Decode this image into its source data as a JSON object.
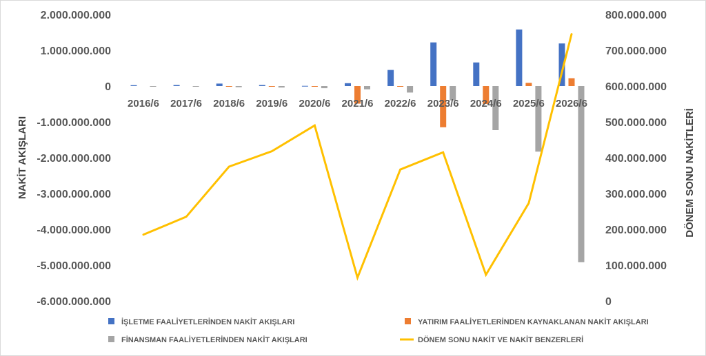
{
  "chart_data": {
    "type": "bar",
    "categories": [
      "2016/6",
      "2017/6",
      "2018/6",
      "2019/6",
      "2020/6",
      "2021/6",
      "2022/6",
      "2023/6",
      "2024/6",
      "2025/6",
      "2026/6"
    ],
    "ylabel": "NAKİT AKIŞLARI",
    "y2label": "DÖNEM SONU NAKİTLERİ",
    "ylim": [
      -6000000000,
      2000000000
    ],
    "y2lim": [
      0,
      800000000
    ],
    "y_ticks": [
      "2.000.000.000",
      "1.000.000.000",
      "0",
      "-1.000.000.000",
      "-2.000.000.000",
      "-3.000.000.000",
      "-4.000.000.000",
      "-5.000.000.000",
      "-6.000.000.000"
    ],
    "y2_ticks": [
      "800.000.000",
      "700.000.000",
      "600.000.000",
      "500.000.000",
      "400.000.000",
      "300.000.000",
      "200.000.000",
      "100.000.000",
      "0"
    ],
    "grid": false,
    "legend_position": "bottom",
    "series": [
      {
        "name": "İŞLETME FAALİYETLERİNDEN NAKİT AKIŞLARI",
        "kind": "bar",
        "axis": "left",
        "color": "#4472C4",
        "values": [
          25000000,
          30000000,
          70000000,
          30000000,
          5000000,
          80000000,
          450000000,
          1220000000,
          660000000,
          1580000000,
          1190000000
        ]
      },
      {
        "name": "YATIRIM FAALİYETLERİNDEN KAYNAKLANAN NAKİT AKIŞLARI",
        "kind": "bar",
        "axis": "left",
        "color": "#ED7D31",
        "values": [
          0,
          0,
          -5000000,
          -5000000,
          -5000000,
          -490000000,
          -10000000,
          -1150000000,
          -500000000,
          90000000,
          220000000
        ]
      },
      {
        "name": "FİNANSMAN FAALİYETLERİNDEN NAKİT AKIŞLARI",
        "kind": "bar",
        "axis": "left",
        "color": "#A5A5A5",
        "values": [
          -5000000,
          -10000000,
          -30000000,
          -40000000,
          -60000000,
          -90000000,
          -180000000,
          -400000000,
          -1230000000,
          -1830000000,
          -4920000000
        ]
      },
      {
        "name": "DÖNEM SONU NAKİT VE NAKİT BENZERLERİ",
        "kind": "line",
        "axis": "right",
        "color": "#FFC000",
        "values": [
          185000000,
          235000000,
          375000000,
          418000000,
          490000000,
          65000000,
          367000000,
          415000000,
          73000000,
          273000000,
          745000000
        ]
      }
    ]
  }
}
